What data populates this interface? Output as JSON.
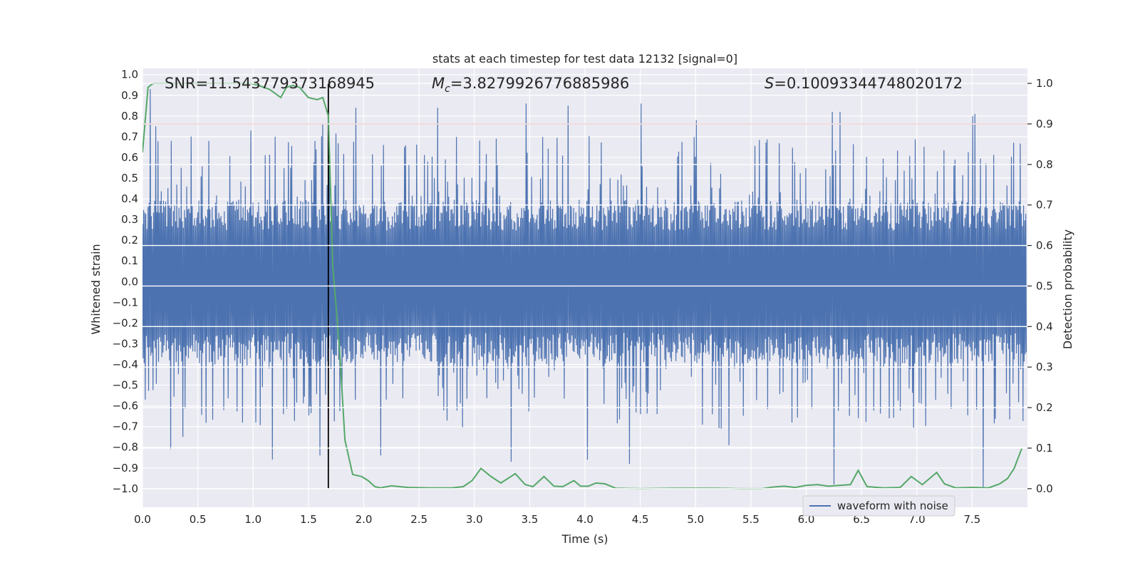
{
  "chart_data": {
    "type": "line",
    "title": "stats at each timestep for test data 12132 [signal=0]",
    "xlabel": "Time (s)",
    "ylabel": "Whitened strain",
    "y2label": "Detection probability",
    "xlim": [
      0.0,
      8.0
    ],
    "ylim": [
      -1.09,
      1.03
    ],
    "y2lim": [
      -0.046,
      1.037
    ],
    "xticks": [
      "0.0",
      "0.5",
      "1.0",
      "1.5",
      "2.0",
      "2.5",
      "3.0",
      "3.5",
      "4.0",
      "4.5",
      "5.0",
      "5.5",
      "6.0",
      "6.5",
      "7.0",
      "7.5"
    ],
    "yticks": [
      "1.0",
      "0.9",
      "0.8",
      "0.7",
      "0.6",
      "0.5",
      "0.4",
      "0.3",
      "0.2",
      "0.1",
      "0.0",
      "-0.1",
      "-0.2",
      "-0.3",
      "-0.4",
      "-0.5",
      "-0.6",
      "-0.7",
      "-0.8",
      "-0.9",
      "-1.0"
    ],
    "y2ticks": [
      "1.0",
      "0.9",
      "0.8",
      "0.7",
      "0.6",
      "0.5",
      "0.4",
      "0.3",
      "0.2",
      "0.1",
      "0.0"
    ],
    "grid": true,
    "legend": {
      "position": "lower-right",
      "entries": [
        "waveform with noise"
      ]
    },
    "annotations": {
      "snr": "SNR=11.543779373168945",
      "mc_symbol": "M",
      "mc_sub": "c",
      "mc_value": "=3.8279926776885986",
      "s_symbol": "S",
      "s_value": "=0.10093344748020172"
    },
    "threshold_line": {
      "y2": 0.9,
      "color": "#c44e52"
    },
    "vertical_marker": {
      "x": 1.68,
      "color": "#000000"
    },
    "series": [
      {
        "name": "waveform with noise",
        "color": "#4c72b0",
        "axis": "left",
        "t_start": 0.0,
        "t_end": 7.99,
        "samples": 1600,
        "typical_abs_amplitude": 0.33,
        "noise_seed": 12132,
        "peaks": [
          [
            0.07,
            0.93
          ],
          [
            0.12,
            0.75
          ],
          [
            0.26,
            0.68
          ],
          [
            0.35,
            0.55
          ],
          [
            0.6,
            0.68
          ],
          [
            0.98,
            0.73
          ],
          [
            1.2,
            0.7
          ],
          [
            1.63,
            0.76
          ],
          [
            1.93,
            0.84
          ],
          [
            2.67,
            0.84
          ],
          [
            3.47,
            0.86
          ],
          [
            3.85,
            0.85
          ],
          [
            4.5,
            0.86
          ],
          [
            5.0,
            0.78
          ],
          [
            6.23,
            0.82
          ],
          [
            6.3,
            0.82
          ],
          [
            7.5,
            0.8
          ],
          [
            7.52,
            0.81
          ],
          [
            0.25,
            -0.81
          ],
          [
            0.36,
            -0.75
          ],
          [
            1.17,
            -0.86
          ],
          [
            1.6,
            -0.84
          ],
          [
            2.15,
            -0.84
          ],
          [
            3.33,
            -0.87
          ],
          [
            4.02,
            -0.86
          ],
          [
            4.4,
            -0.88
          ],
          [
            5.3,
            -0.79
          ],
          [
            6.25,
            -0.98
          ],
          [
            7.6,
            -1.0
          ]
        ]
      },
      {
        "name": "detection probability",
        "color": "#55a868",
        "axis": "right",
        "x": [
          0.0,
          0.05,
          0.07,
          0.1,
          0.2,
          0.4,
          0.6,
          0.8,
          0.98,
          1.05,
          1.15,
          1.25,
          1.3,
          1.36,
          1.42,
          1.5,
          1.58,
          1.63,
          1.68,
          1.72,
          1.78,
          1.83,
          1.9,
          1.98,
          2.04,
          2.1,
          2.15,
          2.25,
          2.4,
          2.6,
          2.8,
          2.9,
          2.98,
          3.06,
          3.15,
          3.24,
          3.37,
          3.46,
          3.53,
          3.63,
          3.72,
          3.8,
          3.9,
          3.96,
          4.03,
          4.1,
          4.18,
          4.28,
          4.5,
          4.8,
          5.0,
          5.2,
          5.4,
          5.6,
          5.7,
          5.8,
          5.9,
          6.0,
          6.1,
          6.2,
          6.3,
          6.4,
          6.47,
          6.55,
          6.7,
          6.85,
          6.95,
          7.05,
          7.18,
          7.25,
          7.35,
          7.5,
          7.65,
          7.75,
          7.82,
          7.88,
          7.95
        ],
        "y": [
          0.83,
          0.99,
          0.995,
          1.0,
          1.0,
          1.0,
          1.0,
          1.0,
          1.0,
          0.995,
          0.985,
          0.965,
          0.99,
          0.995,
          0.99,
          0.965,
          0.96,
          0.965,
          0.92,
          0.55,
          0.35,
          0.12,
          0.035,
          0.03,
          0.02,
          0.005,
          0.002,
          0.007,
          0.003,
          0.002,
          0.002,
          0.005,
          0.02,
          0.05,
          0.03,
          0.014,
          0.037,
          0.01,
          0.005,
          0.03,
          0.006,
          0.005,
          0.02,
          0.006,
          0.006,
          0.014,
          0.012,
          0.001,
          0.0,
          0.001,
          0.001,
          0.001,
          0.0,
          0.0,
          0.004,
          0.006,
          0.003,
          0.008,
          0.01,
          0.006,
          0.008,
          0.01,
          0.045,
          0.005,
          0.002,
          0.003,
          0.03,
          0.01,
          0.04,
          0.012,
          0.002,
          0.003,
          0.002,
          0.012,
          0.025,
          0.05,
          0.1
        ]
      }
    ]
  }
}
